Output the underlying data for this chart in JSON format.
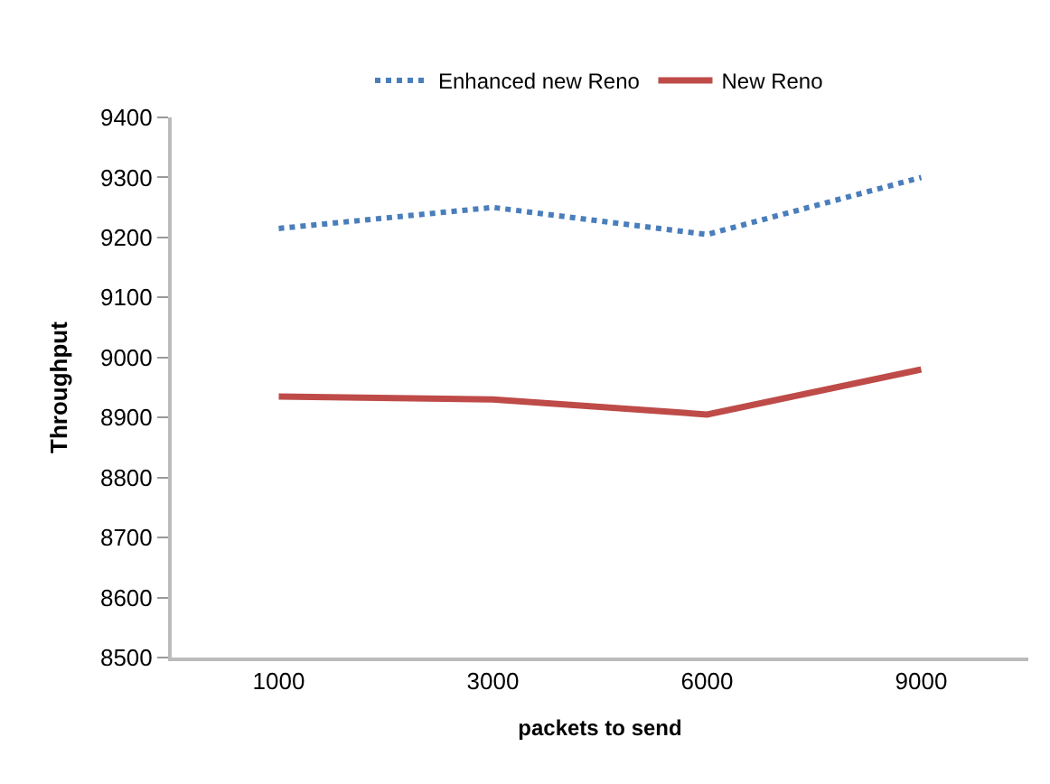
{
  "chart_data": {
    "type": "line",
    "xlabel": "packets to send",
    "ylabel": "Throughput",
    "categories": [
      "1000",
      "3000",
      "6000",
      "9000"
    ],
    "series": [
      {
        "name": "Enhanced new Reno",
        "color": "#4a7ebb",
        "line_style": "dotted",
        "values": [
          9215,
          9250,
          9205,
          9300
        ]
      },
      {
        "name": "New Reno",
        "color": "#be4b48",
        "line_style": "solid",
        "values": [
          8935,
          8930,
          8905,
          8980
        ]
      }
    ],
    "ylim": [
      8500,
      9400
    ],
    "yticks": [
      8500,
      8600,
      8700,
      8800,
      8900,
      9000,
      9100,
      9200,
      9300,
      9400
    ],
    "legend": "top",
    "marker": "none"
  }
}
